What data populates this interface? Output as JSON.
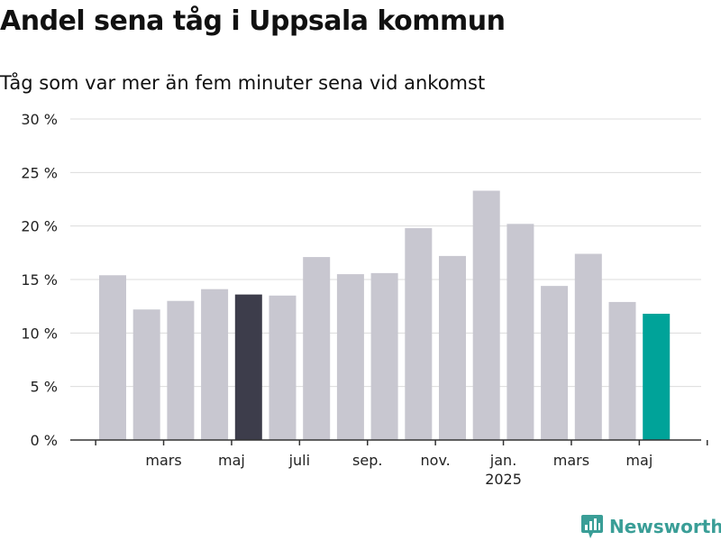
{
  "chart_data": {
    "type": "bar",
    "title": "Andel sena tåg i Uppsala kommun",
    "subtitle": "Tåg som var mer än fem minuter sena vid ankomst",
    "values": [
      15.4,
      12.2,
      13.0,
      14.1,
      13.6,
      13.5,
      17.1,
      15.5,
      15.6,
      19.8,
      17.2,
      23.3,
      20.2,
      14.4,
      17.4,
      12.9,
      11.8
    ],
    "highlight": {
      "4": "#3d3d4b",
      "16": "#00a399"
    },
    "bar_color": "#c8c7d0",
    "ylim": [
      0,
      30
    ],
    "yticks": [
      {
        "value": 0,
        "label": "0 %"
      },
      {
        "value": 5,
        "label": "5 %"
      },
      {
        "value": 10,
        "label": "10 %"
      },
      {
        "value": 15,
        "label": "15 %"
      },
      {
        "value": 20,
        "label": "20 %"
      },
      {
        "value": 25,
        "label": "25 %"
      },
      {
        "value": 30,
        "label": "30 %"
      }
    ],
    "xticks": [
      {
        "index": 1.5,
        "label": "mars"
      },
      {
        "index": 3.5,
        "label": "maj"
      },
      {
        "index": 5.5,
        "label": "juli"
      },
      {
        "index": 7.5,
        "label": "sep."
      },
      {
        "index": 9.5,
        "label": "nov."
      },
      {
        "index": 11.5,
        "label": "jan.",
        "sublabel": "2025"
      },
      {
        "index": 13.5,
        "label": "mars"
      },
      {
        "index": 15.5,
        "label": "maj"
      }
    ],
    "grid": true,
    "legend": "none"
  },
  "brand": {
    "name": "Newsworthy",
    "icon": "newsworthy-logo-icon",
    "color": "#3a9e97"
  }
}
